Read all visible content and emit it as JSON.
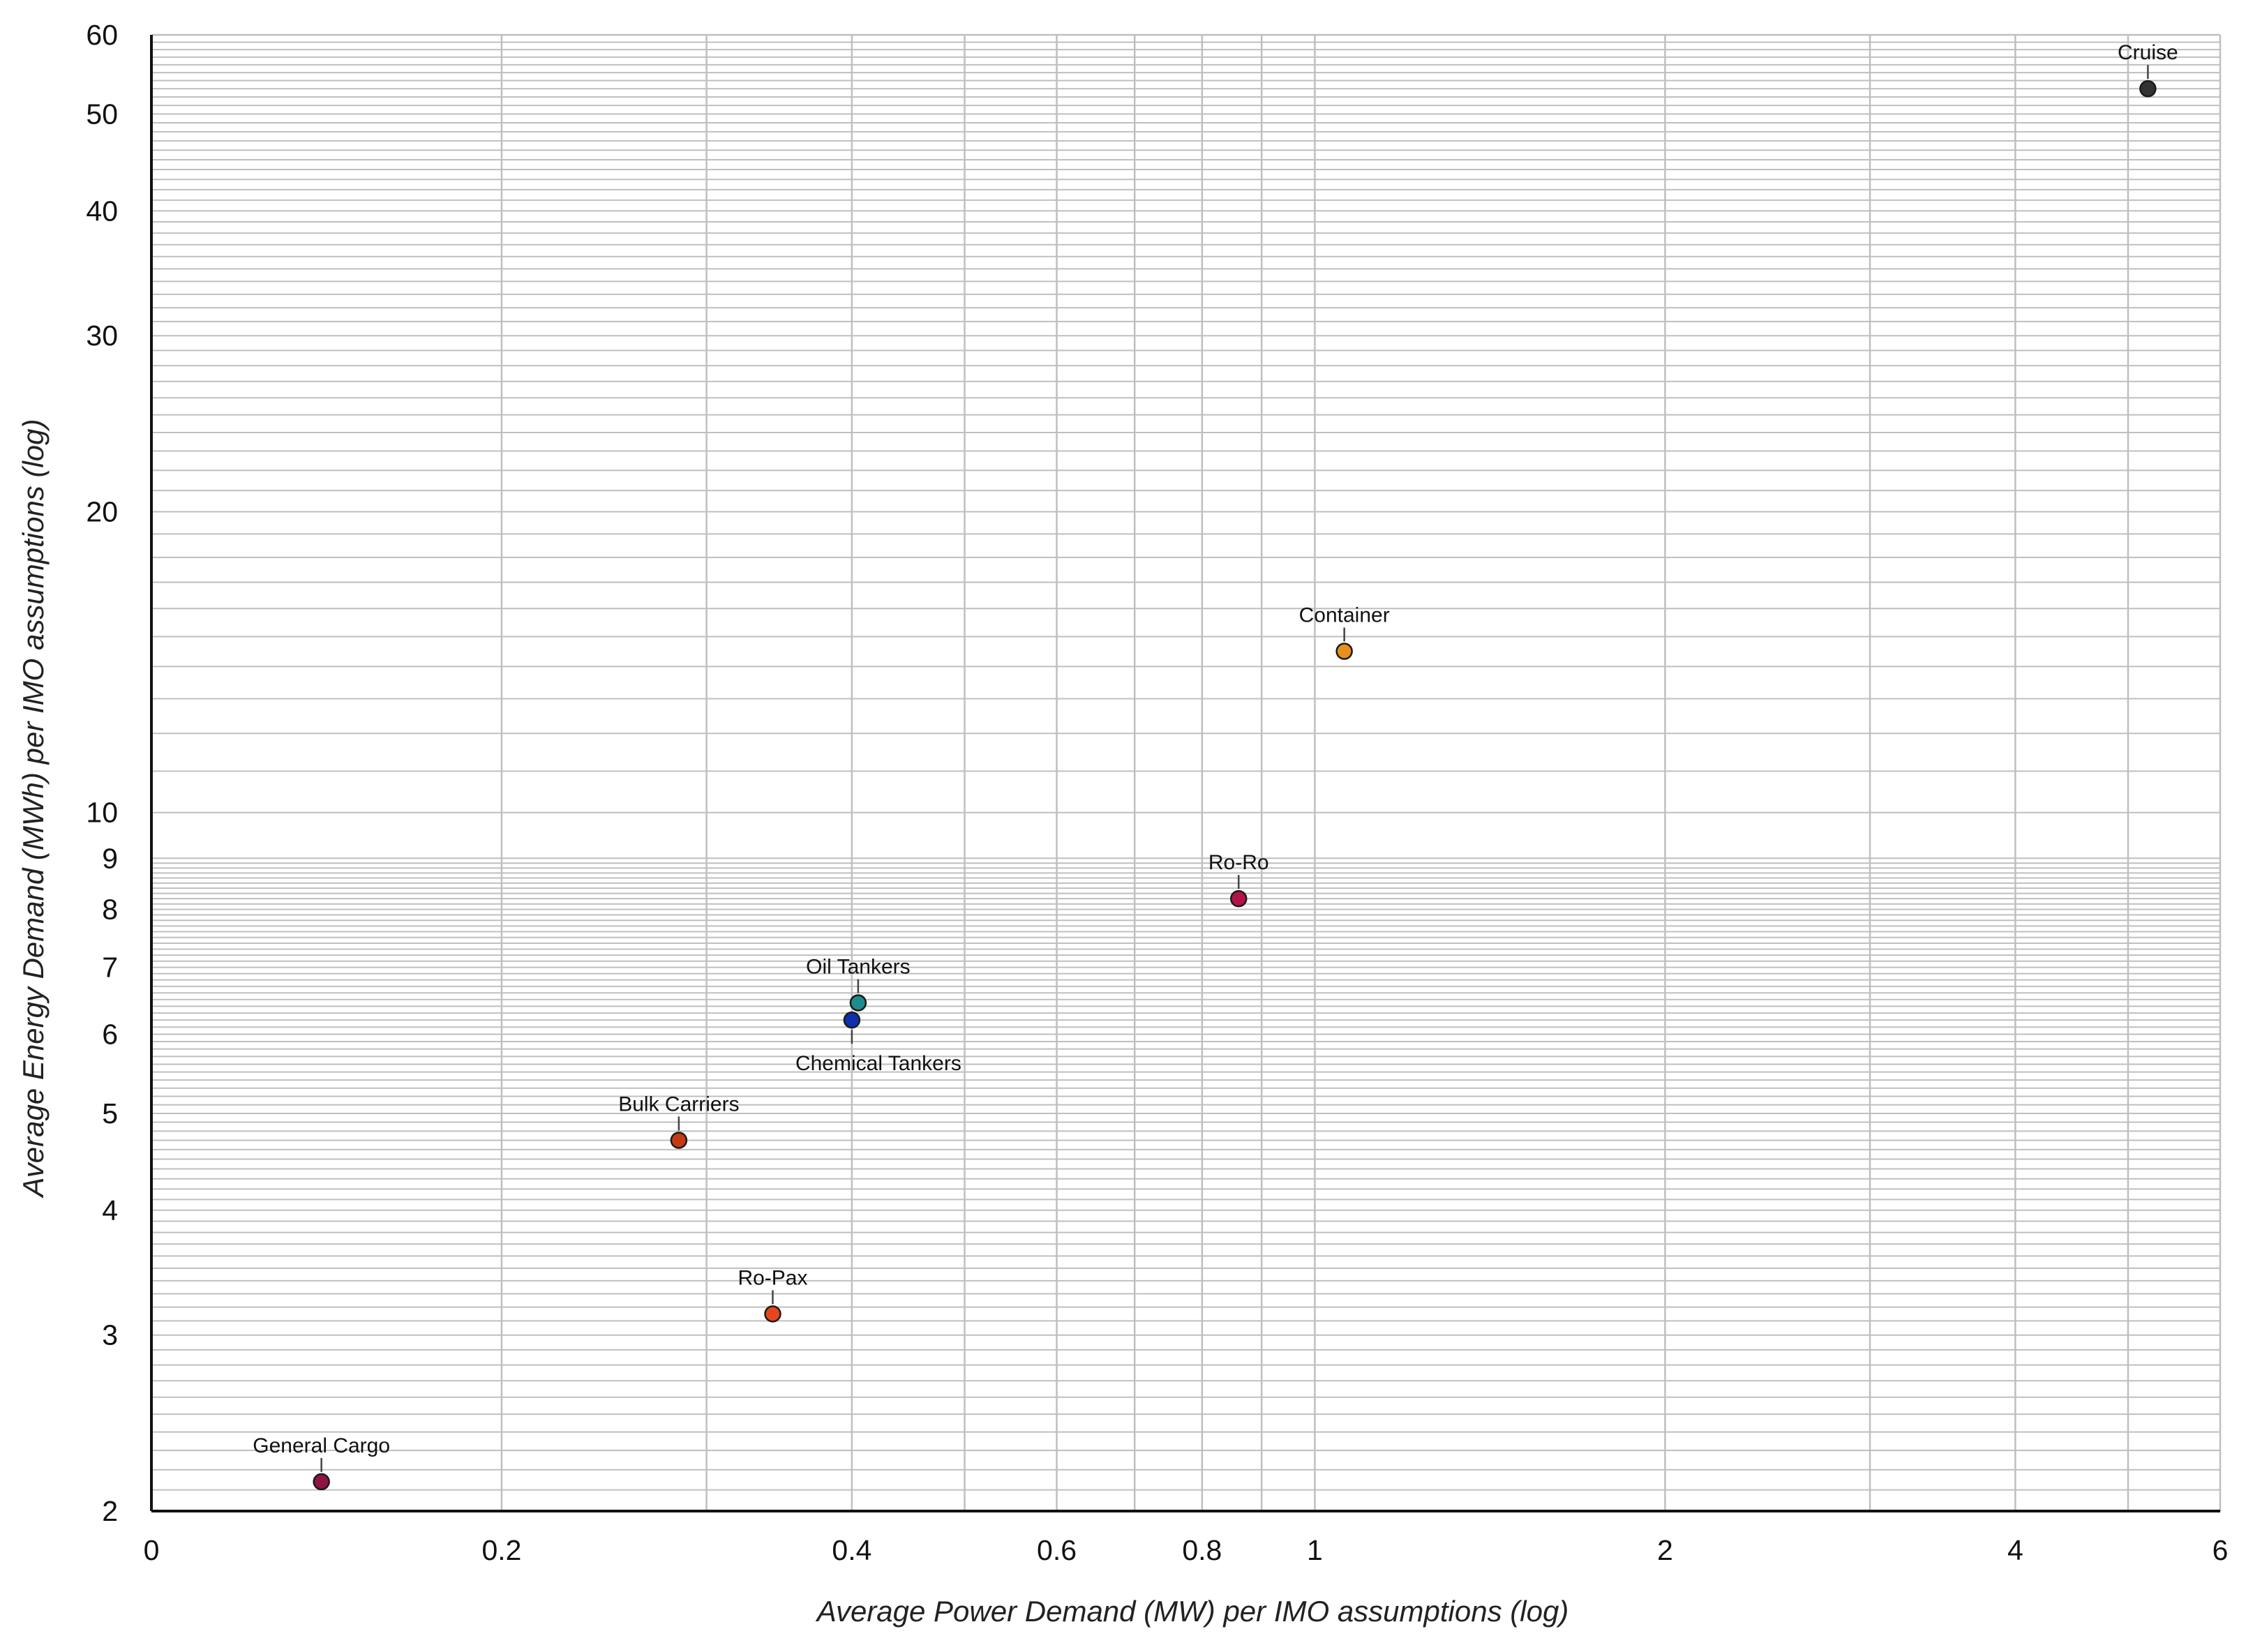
{
  "chart_data": {
    "type": "scatter",
    "title": "",
    "xlabel": "Average Power Demand (MW) per IMO assumptions (log)",
    "ylabel": "Average Energy Demand (MWh) per IMO assumptions (log)",
    "x_scale": "log",
    "y_scale": "log",
    "xlim": [
      0.1,
      6
    ],
    "ylim": [
      2,
      60
    ],
    "x_ticks": [
      {
        "value": 0.1,
        "label": "0"
      },
      {
        "value": 0.2,
        "label": "0.2"
      },
      {
        "value": 0.4,
        "label": "0.4"
      },
      {
        "value": 0.6,
        "label": "0.6"
      },
      {
        "value": 0.8,
        "label": "0.8"
      },
      {
        "value": 1,
        "label": "1"
      },
      {
        "value": 2,
        "label": "2"
      },
      {
        "value": 4,
        "label": "4"
      },
      {
        "value": 6,
        "label": "6"
      }
    ],
    "y_ticks": [
      {
        "value": 2,
        "label": "2"
      },
      {
        "value": 3,
        "label": "3"
      },
      {
        "value": 4,
        "label": "4"
      },
      {
        "value": 5,
        "label": "5"
      },
      {
        "value": 6,
        "label": "6"
      },
      {
        "value": 7,
        "label": "7"
      },
      {
        "value": 8,
        "label": "8"
      },
      {
        "value": 9,
        "label": "9"
      },
      {
        "value": 10,
        "label": "10"
      },
      {
        "value": 20,
        "label": "20"
      },
      {
        "value": 30,
        "label": "30"
      },
      {
        "value": 40,
        "label": "40"
      },
      {
        "value": 50,
        "label": "50"
      },
      {
        "value": 60,
        "label": "60"
      }
    ],
    "grid": true,
    "grid_color": "#bfbfbf",
    "points": [
      {
        "label": "General Cargo",
        "x": 0.14,
        "y": 2.14,
        "color": "#8e1444",
        "label_pos": "above"
      },
      {
        "label": "Bulk Carriers",
        "x": 0.284,
        "y": 4.7,
        "color": "#c53a13",
        "label_pos": "above"
      },
      {
        "label": "Ro-Pax",
        "x": 0.342,
        "y": 3.15,
        "color": "#e5461d",
        "label_pos": "above"
      },
      {
        "label": "Oil Tankers",
        "x": 0.405,
        "y": 6.45,
        "color": "#1e8b8f",
        "label_pos": "above"
      },
      {
        "label": "Chemical Tankers",
        "x": 0.4,
        "y": 6.2,
        "color": "#0e2fb0",
        "label_pos": "below"
      },
      {
        "label": "Ro-Ro",
        "x": 0.86,
        "y": 8.2,
        "color": "#b5124a",
        "label_pos": "above"
      },
      {
        "label": "Container",
        "x": 1.06,
        "y": 14.5,
        "color": "#e8901d",
        "label_pos": "above"
      },
      {
        "label": "Cruise",
        "x": 5.2,
        "y": 53,
        "color": "#333333",
        "label_pos": "above"
      }
    ]
  }
}
